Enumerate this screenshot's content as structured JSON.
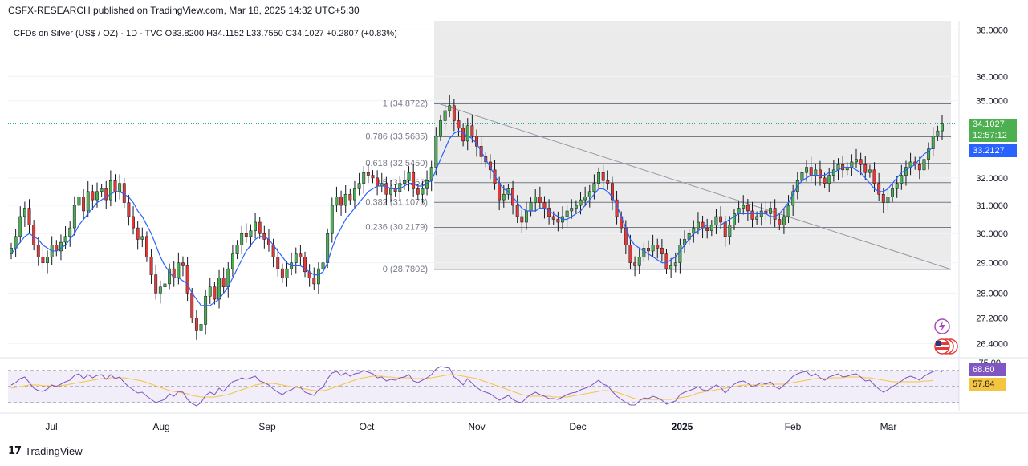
{
  "header": {
    "published_line": "CSFX-RESEARCH published on TradingView.com, Mar 18, 2025 14:32 UTC+5:30"
  },
  "legend": {
    "symbol": "CFDs on Silver (US$ / OZ) · 1D · TVC",
    "open": "O33.8200",
    "high": "H34.1152",
    "low": "L33.7550",
    "close": "C34.1027",
    "change": "+0.2807 (+0.83%)"
  },
  "footer": {
    "brand": "TradingView"
  },
  "badges": {
    "last_price": "34.1027",
    "countdown": "12:57:12",
    "ma_value": "33.2127",
    "rsi_value": "68.60",
    "rsi_ma_value": "57.84"
  },
  "colors": {
    "up": "#26a69a",
    "down": "#ef5350",
    "candle_up_body": "#4caf50",
    "candle_down_body": "#e53935",
    "ma_line": "#2962ff",
    "rsi_line": "#7e57c2",
    "rsi_ma_line": "#f5c542",
    "last_price_badge": "#4caf50",
    "ma_badge": "#2962ff",
    "rsi_badge": "#7e57c2",
    "rsi_ma_badge": "#f5c542",
    "fib_zone": "#ebebeb"
  },
  "chart_data": {
    "type": "candlestick",
    "y_axis": {
      "scale": "log",
      "ticks": [
        "38.0000",
        "36.0000",
        "35.0000",
        "32.0000",
        "31.0000",
        "30.0000",
        "29.0000",
        "28.0000",
        "27.2000",
        "26.4000"
      ],
      "range": [
        26.0,
        38.4
      ]
    },
    "x_axis_labels": [
      "Jul",
      "Aug",
      "Sep",
      "Oct",
      "Nov",
      "Dec",
      "2025",
      "Feb",
      "Mar"
    ],
    "fibonacci": [
      {
        "label": "1 (34.8722)",
        "value": 34.8722
      },
      {
        "label": "0.786 (33.5685)",
        "value": 33.5685
      },
      {
        "label": "0.618 (32.5450)",
        "value": 32.545
      },
      {
        "label": "0.5 (31.8262)",
        "value": 31.8262
      },
      {
        "label": "0.382 (31.1073)",
        "value": 31.1073
      },
      {
        "label": "0.236 (30.2179)",
        "value": 30.2179
      },
      {
        "label": "0 (28.7802)",
        "value": 28.7802
      }
    ],
    "trendline": {
      "from": 34.87,
      "to": 28.78
    },
    "close_series": [
      29.5,
      29.9,
      30.6,
      30.9,
      30.3,
      29.6,
      29.2,
      29.0,
      29.2,
      29.6,
      29.4,
      29.7,
      29.9,
      30.2,
      31.0,
      31.3,
      30.8,
      31.5,
      31.2,
      31.5,
      31.6,
      31.2,
      31.9,
      31.5,
      31.8,
      31.1,
      30.6,
      30.2,
      29.8,
      29.9,
      29.2,
      28.6,
      28.0,
      28.2,
      28.3,
      28.8,
      28.5,
      29.0,
      28.9,
      28.0,
      27.2,
      26.8,
      27.0,
      27.9,
      28.2,
      27.8,
      28.5,
      28.2,
      28.8,
      29.3,
      29.6,
      30.0,
      29.9,
      30.1,
      30.4,
      30.0,
      29.8,
      29.6,
      29.2,
      28.8,
      28.5,
      28.8,
      29.0,
      29.3,
      29.2,
      28.7,
      28.5,
      28.3,
      28.8,
      29.0,
      30.0,
      31.0,
      31.3,
      31.0,
      31.4,
      31.2,
      31.6,
      31.8,
      32.2,
      32.1,
      32.0,
      31.7,
      31.8,
      31.4,
      31.6,
      31.5,
      31.8,
      31.9,
      32.2,
      31.6,
      31.4,
      31.6,
      31.9,
      32.4,
      33.6,
      34.2,
      34.6,
      34.8,
      34.2,
      33.9,
      33.4,
      34.0,
      33.6,
      33.2,
      32.8,
      32.6,
      32.3,
      31.8,
      31.2,
      31.4,
      31.6,
      31.0,
      30.6,
      30.4,
      30.8,
      31.1,
      31.3,
      31.1,
      30.9,
      30.6,
      30.5,
      30.4,
      30.6,
      30.8,
      30.9,
      31.0,
      31.2,
      31.3,
      31.5,
      31.8,
      32.2,
      31.9,
      31.8,
      31.2,
      30.6,
      30.2,
      29.6,
      29.0,
      28.9,
      29.2,
      29.5,
      29.4,
      29.6,
      29.5,
      29.3,
      28.8,
      28.9,
      29.0,
      29.6,
      29.8,
      30.0,
      30.2,
      30.4,
      30.2,
      30.1,
      30.3,
      30.6,
      30.4,
      29.9,
      30.3,
      30.7,
      30.9,
      31.0,
      30.8,
      30.5,
      30.6,
      30.8,
      30.7,
      30.9,
      30.5,
      30.3,
      30.6,
      31.0,
      31.5,
      31.9,
      32.2,
      32.4,
      32.1,
      32.3,
      32.0,
      31.8,
      32.1,
      32.3,
      32.5,
      32.3,
      32.4,
      32.6,
      32.7,
      32.5,
      32.2,
      32.3,
      31.8,
      31.4,
      31.1,
      31.3,
      31.6,
      31.8,
      32.1,
      32.4,
      32.6,
      32.5,
      32.3,
      32.7,
      33.1,
      33.6,
      33.8,
      34.1
    ],
    "ma_series": [
      29.3,
      29.5,
      29.7,
      29.9,
      30.0,
      29.9,
      29.8,
      29.6,
      29.5,
      29.4,
      29.4,
      29.5,
      29.6,
      29.8,
      30.0,
      30.3,
      30.5,
      30.7,
      30.9,
      31.1,
      31.2,
      31.3,
      31.4,
      31.5,
      31.5,
      31.4,
      31.3,
      31.1,
      30.8,
      30.6,
      30.3,
      30.0,
      29.6,
      29.2,
      28.9,
      28.7,
      28.5,
      28.5,
      28.4,
      28.3,
      28.0,
      27.8,
      27.6,
      27.6,
      27.6,
      27.7,
      27.8,
      28.0,
      28.2,
      28.5,
      28.8,
      29.1,
      29.4,
      29.6,
      29.8,
      29.9,
      29.9,
      29.8,
      29.6,
      29.4,
      29.2,
      29.0,
      28.9,
      28.9,
      28.9,
      28.8,
      28.7,
      28.6,
      28.6,
      28.7,
      29.0,
      29.5,
      29.9,
      30.2,
      30.5,
      30.7,
      30.9,
      31.1,
      31.3,
      31.5,
      31.6,
      31.7,
      31.7,
      31.7,
      31.6,
      31.6,
      31.6,
      31.7,
      31.8,
      31.8,
      31.7,
      31.7,
      31.8,
      31.9,
      32.3,
      32.7,
      33.1,
      33.5,
      33.7,
      33.8,
      33.7,
      33.6,
      33.5,
      33.3,
      33.0,
      32.7,
      32.4,
      32.1,
      31.8,
      31.6,
      31.5,
      31.3,
      31.1,
      30.9,
      30.8,
      30.8,
      30.8,
      30.9,
      30.9,
      30.8,
      30.7,
      30.6,
      30.5,
      30.5,
      30.6,
      30.7,
      30.8,
      31.0,
      31.2,
      31.4,
      31.6,
      31.6,
      31.5,
      31.3,
      31.0,
      30.6,
      30.2,
      29.8,
      29.6,
      29.5,
      29.4,
      29.3,
      29.2,
      29.1,
      29.0,
      29.0,
      29.1,
      29.2,
      29.4,
      29.6,
      29.8,
      30.0,
      30.1,
      30.2,
      30.3,
      30.3,
      30.3,
      30.3,
      30.4,
      30.5,
      30.6,
      30.7,
      30.7,
      30.7,
      30.7,
      30.7,
      30.7,
      30.7,
      30.6,
      30.6,
      30.7,
      30.9,
      31.1,
      31.4,
      31.7,
      31.9,
      32.0,
      32.1,
      32.1,
      32.1,
      32.1,
      32.2,
      32.2,
      32.3,
      32.4,
      32.4,
      32.4,
      32.3,
      32.2,
      32.0,
      31.8,
      31.6,
      31.5,
      31.5,
      31.6,
      31.8,
      32.0,
      32.2,
      32.3,
      32.4,
      32.5,
      32.7,
      32.9,
      33.0,
      33.2
    ],
    "rsi": {
      "levels": [
        70,
        50,
        30
      ],
      "axis_label": "75.00",
      "ylim": [
        20,
        80
      ],
      "series": [
        52,
        55,
        60,
        62,
        55,
        48,
        45,
        44,
        47,
        52,
        50,
        53,
        56,
        58,
        64,
        66,
        60,
        65,
        61,
        64,
        65,
        59,
        65,
        60,
        62,
        55,
        50,
        46,
        42,
        43,
        38,
        34,
        30,
        32,
        34,
        41,
        38,
        44,
        43,
        34,
        29,
        26,
        30,
        39,
        43,
        40,
        48,
        44,
        51,
        56,
        58,
        61,
        59,
        61,
        63,
        57,
        55,
        52,
        47,
        43,
        40,
        44,
        46,
        50,
        49,
        43,
        41,
        39,
        46,
        49,
        60,
        67,
        69,
        64,
        67,
        63,
        66,
        67,
        70,
        68,
        66,
        61,
        62,
        57,
        59,
        58,
        61,
        62,
        65,
        57,
        55,
        58,
        61,
        65,
        72,
        75,
        74,
        73,
        62,
        58,
        52,
        60,
        54,
        49,
        45,
        43,
        41,
        37,
        33,
        36,
        39,
        34,
        31,
        30,
        36,
        40,
        43,
        40,
        38,
        35,
        35,
        34,
        37,
        40,
        42,
        43,
        46,
        48,
        50,
        54,
        58,
        53,
        51,
        44,
        38,
        34,
        30,
        27,
        27,
        32,
        36,
        35,
        38,
        36,
        33,
        28,
        30,
        32,
        40,
        43,
        45,
        47,
        50,
        46,
        45,
        48,
        52,
        49,
        42,
        48,
        53,
        56,
        57,
        54,
        50,
        52,
        55,
        53,
        56,
        50,
        47,
        52,
        57,
        63,
        66,
        68,
        69,
        63,
        66,
        61,
        58,
        62,
        64,
        66,
        62,
        63,
        65,
        66,
        62,
        57,
        58,
        52,
        47,
        43,
        46,
        50,
        53,
        57,
        61,
        63,
        61,
        58,
        63,
        66,
        69,
        70,
        68.6
      ],
      "ma_series": [
        48,
        49,
        50,
        51,
        52,
        52,
        52,
        51,
        51,
        51,
        51,
        51,
        52,
        53,
        54,
        55,
        56,
        57,
        58,
        59,
        60,
        60,
        61,
        61,
        61,
        61,
        60,
        59,
        58,
        57,
        55,
        53,
        51,
        49,
        47,
        45,
        44,
        43,
        42,
        41,
        39,
        38,
        37,
        37,
        37,
        37,
        38,
        39,
        40,
        42,
        44,
        46,
        48,
        50,
        52,
        53,
        54,
        54,
        54,
        53,
        52,
        51,
        50,
        49,
        48,
        47,
        46,
        45,
        45,
        45,
        46,
        48,
        50,
        52,
        54,
        56,
        58,
        60,
        61,
        62,
        63,
        63,
        63,
        62,
        62,
        61,
        61,
        61,
        61,
        60,
        60,
        60,
        60,
        61,
        62,
        63,
        64,
        65,
        65,
        64,
        63,
        62,
        61,
        60,
        58,
        56,
        54,
        52,
        50,
        48,
        46,
        44,
        42,
        40,
        39,
        38,
        38,
        38,
        38,
        38,
        37,
        37,
        37,
        37,
        38,
        39,
        40,
        41,
        42,
        43,
        44,
        45,
        45,
        44,
        43,
        41,
        39,
        37,
        35,
        34,
        34,
        34,
        34,
        34,
        34,
        34,
        34,
        35,
        36,
        37,
        38,
        40,
        42,
        43,
        44,
        45,
        46,
        47,
        48,
        49,
        50,
        51,
        52,
        52,
        52,
        52,
        52,
        53,
        53,
        53,
        53,
        53,
        54,
        55,
        56,
        57,
        58,
        59,
        60,
        60,
        60,
        60,
        61,
        61,
        61,
        62,
        62,
        62,
        62,
        61,
        61,
        60,
        59,
        58,
        57,
        56,
        56,
        56,
        56,
        56,
        56,
        56,
        57,
        57,
        57.84
      ]
    }
  }
}
